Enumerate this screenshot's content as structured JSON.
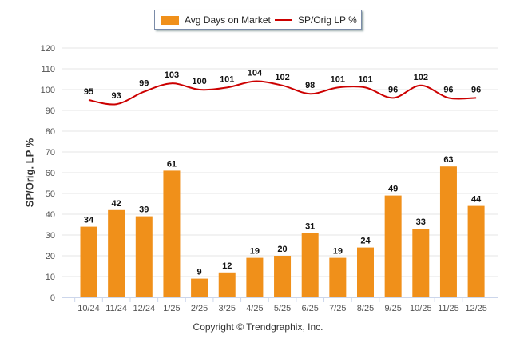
{
  "chart_data": {
    "type": "bar",
    "title": "",
    "xlabel": "",
    "ylabel": "SP/Orig. LP %",
    "ylim": [
      0,
      120
    ],
    "yticks": [
      0,
      10,
      20,
      30,
      40,
      50,
      60,
      70,
      80,
      90,
      100,
      110,
      120
    ],
    "grid": true,
    "legend_placement": "top-center",
    "categories": [
      "10/24",
      "11/24",
      "12/24",
      "1/25",
      "2/25",
      "3/25",
      "4/25",
      "5/25",
      "6/25",
      "7/25",
      "8/25",
      "9/25",
      "10/25",
      "11/25",
      "12/25"
    ],
    "series": [
      {
        "name": "Avg Days on Market",
        "kind": "bar",
        "color": "#f0901a",
        "values": [
          34,
          42,
          39,
          61,
          9,
          12,
          19,
          20,
          31,
          19,
          24,
          49,
          33,
          63,
          44
        ]
      },
      {
        "name": "SP/Orig LP %",
        "kind": "line",
        "color": "#cc0000",
        "values": [
          95,
          93,
          99,
          103,
          100,
          101,
          104,
          102,
          98,
          101,
          101,
          96,
          102,
          96,
          96
        ]
      }
    ]
  },
  "legend": {
    "bar_label": "Avg Days on Market",
    "line_label": "SP/Orig LP %"
  },
  "footer": "Copyright © Trendgraphix, Inc."
}
